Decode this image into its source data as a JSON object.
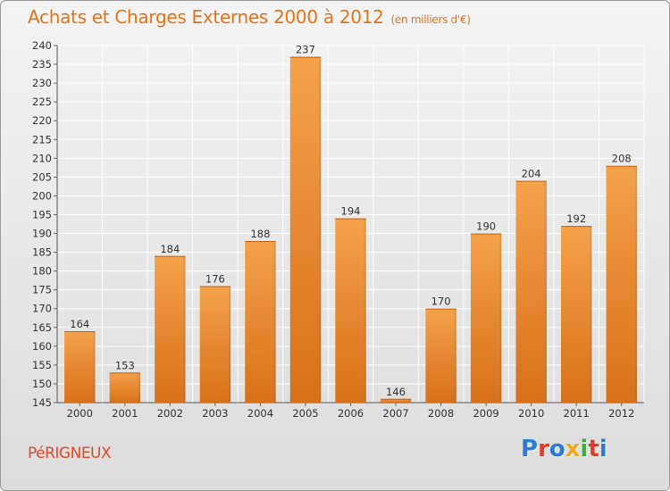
{
  "title": "Achats et Charges Externes 2000 à 2012",
  "subtitle": "(en milliers d'€)",
  "place": "PéRIGNEUX",
  "logo": {
    "letters": [
      "P",
      "r",
      "o",
      "x",
      "i",
      "t",
      "i"
    ],
    "colors": [
      "#2a7bd6",
      "#e0392b",
      "#2a7bd6",
      "#f2a81d",
      "#3cae3c",
      "#e0392b",
      "#2a7bd6"
    ]
  },
  "colors": {
    "bar": "#f0922e",
    "bar_dark": "#d8701a",
    "title": "#e3741e",
    "place": "#e04a2a"
  },
  "chart_data": {
    "type": "bar",
    "title": "Achats et Charges Externes 2000 à 2012",
    "subtitle": "(en milliers d'€)",
    "categories": [
      "2000",
      "2001",
      "2002",
      "2003",
      "2004",
      "2005",
      "2006",
      "2007",
      "2008",
      "2009",
      "2010",
      "2011",
      "2012"
    ],
    "values": [
      164,
      153,
      184,
      176,
      188,
      237,
      194,
      146,
      170,
      190,
      204,
      192,
      208
    ],
    "ylim": [
      145,
      240
    ],
    "yticks": [
      145,
      150,
      155,
      160,
      165,
      170,
      175,
      180,
      185,
      190,
      195,
      200,
      205,
      210,
      215,
      220,
      225,
      230,
      235,
      240
    ],
    "grid": true
  }
}
